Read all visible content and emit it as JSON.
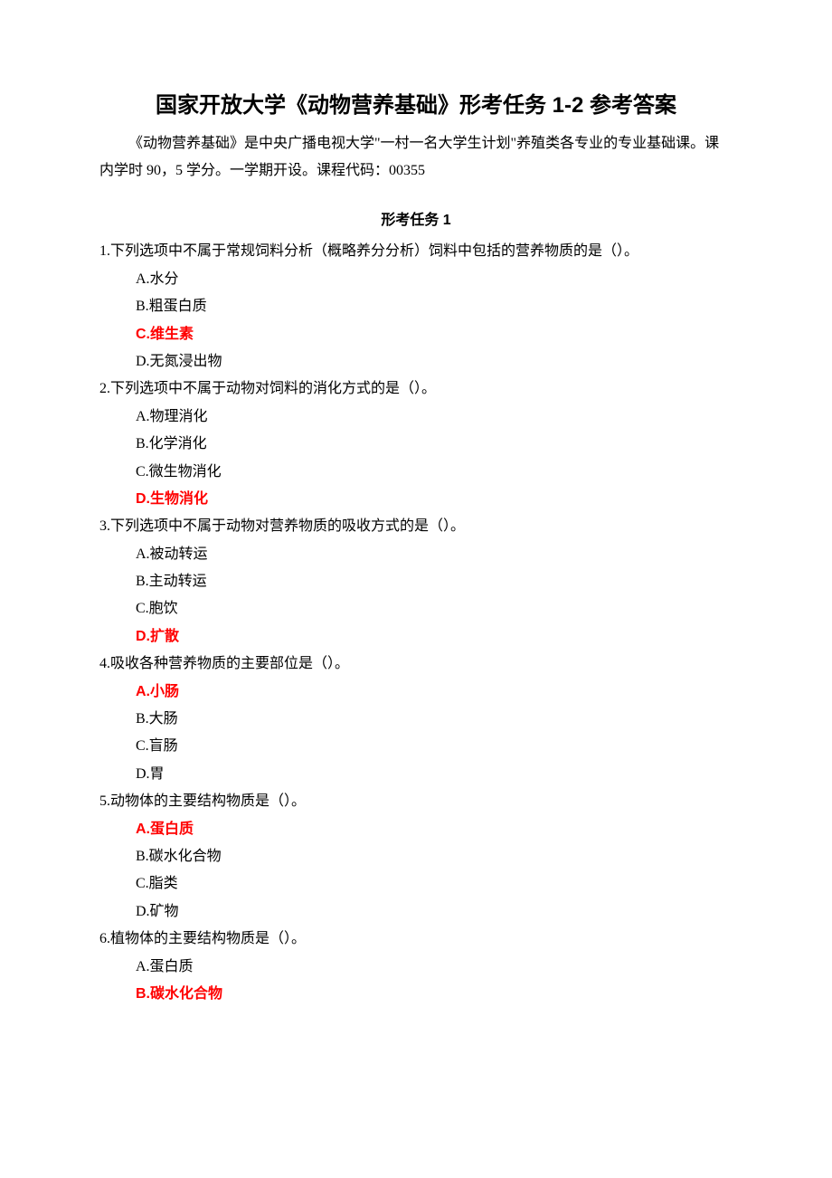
{
  "title": "国家开放大学《动物营养基础》形考任务 1-2 参考答案",
  "intro": "《动物营养基础》是中央广播电视大学\"一村一名大学生计划\"养殖类各专业的专业基础课。课内学时 90，5 学分。一学期开设。课程代码：00355",
  "section_title": "形考任务 1",
  "colors": {
    "text": "#000000",
    "answer": "#ff0000",
    "background": "#ffffff"
  },
  "typography": {
    "title_fontsize": 24,
    "body_fontsize": 16,
    "title_font": "SimHei",
    "body_font": "SimSun",
    "line_height": 1.9
  },
  "questions": [
    {
      "number": "1",
      "text": "下列选项中不属于常规饲料分析（概略养分分析）饲料中包括的营养物质的是（）。",
      "options": [
        {
          "letter": "A",
          "text": "水分",
          "correct": false
        },
        {
          "letter": "B",
          "text": "粗蛋白质",
          "correct": false
        },
        {
          "letter": "C",
          "text": "维生素",
          "correct": true
        },
        {
          "letter": "D",
          "text": "无氮浸出物",
          "correct": false
        }
      ]
    },
    {
      "number": "2",
      "text": "下列选项中不属于动物对饲料的消化方式的是（）。",
      "options": [
        {
          "letter": "A",
          "text": "物理消化",
          "correct": false
        },
        {
          "letter": "B",
          "text": "化学消化",
          "correct": false
        },
        {
          "letter": "C",
          "text": "微生物消化",
          "correct": false
        },
        {
          "letter": "D",
          "text": "生物消化",
          "correct": true
        }
      ]
    },
    {
      "number": "3",
      "text": "下列选项中不属于动物对营养物质的吸收方式的是（）。",
      "options": [
        {
          "letter": "A",
          "text": "被动转运",
          "correct": false
        },
        {
          "letter": "B",
          "text": "主动转运",
          "correct": false
        },
        {
          "letter": "C",
          "text": "胞饮",
          "correct": false
        },
        {
          "letter": "D",
          "text": "扩散",
          "correct": true
        }
      ]
    },
    {
      "number": "4",
      "text": "吸收各种营养物质的主要部位是（）。",
      "options": [
        {
          "letter": "A",
          "text": "小肠",
          "correct": true
        },
        {
          "letter": "B",
          "text": "大肠",
          "correct": false
        },
        {
          "letter": "C",
          "text": "盲肠",
          "correct": false
        },
        {
          "letter": "D",
          "text": "胃",
          "correct": false
        }
      ]
    },
    {
      "number": "5",
      "text": "动物体的主要结构物质是（）。",
      "options": [
        {
          "letter": "A",
          "text": "蛋白质",
          "correct": true
        },
        {
          "letter": "B",
          "text": "碳水化合物",
          "correct": false
        },
        {
          "letter": "C",
          "text": "脂类",
          "correct": false
        },
        {
          "letter": "D",
          "text": "矿物",
          "correct": false
        }
      ]
    },
    {
      "number": "6",
      "text": "植物体的主要结构物质是（）。",
      "options": [
        {
          "letter": "A",
          "text": "蛋白质",
          "correct": false
        },
        {
          "letter": "B",
          "text": "碳水化合物",
          "correct": true
        }
      ]
    }
  ]
}
